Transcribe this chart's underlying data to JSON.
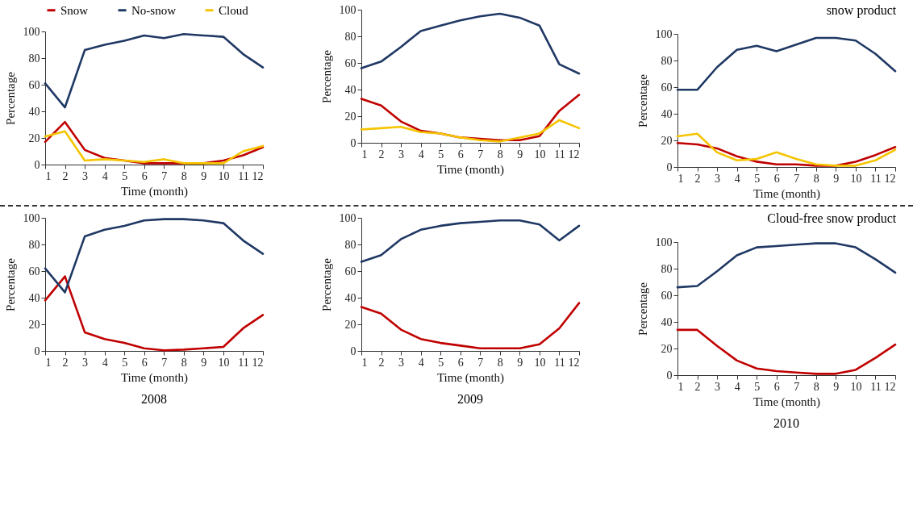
{
  "chart_data": [
    {
      "type": "line",
      "xlabel": "Time (month)",
      "ylabel": "Percentage",
      "legend": "top left",
      "x": [
        1,
        2,
        3,
        4,
        5,
        6,
        7,
        8,
        9,
        10,
        11,
        12
      ],
      "xlim": [
        1,
        12
      ],
      "xticks": [
        1,
        2,
        3,
        4,
        5,
        6,
        7,
        8,
        9,
        10,
        11,
        12
      ],
      "ylim": [
        0,
        100
      ],
      "yticks": [
        0,
        20,
        40,
        60,
        80,
        100
      ],
      "series": [
        {
          "name": "Snow",
          "color": "#c00000",
          "values": [
            17,
            32,
            11,
            5,
            3,
            1,
            1,
            1,
            1,
            3,
            7,
            13
          ]
        },
        {
          "name": "No-snow",
          "color": "#1f3864",
          "values": [
            61,
            43,
            86,
            90,
            93,
            97,
            95,
            98,
            97,
            96,
            83,
            73
          ]
        },
        {
          "name": "Cloud",
          "color": "#f5c400",
          "values": [
            21,
            25,
            3,
            4,
            3,
            2,
            4,
            1,
            1,
            1,
            10,
            14
          ]
        }
      ]
    },
    {
      "type": "line",
      "xlabel": "Time (month)",
      "ylabel": "Percentage",
      "x": [
        1,
        2,
        3,
        4,
        5,
        6,
        7,
        8,
        9,
        10,
        11,
        12
      ],
      "xlim": [
        1,
        12
      ],
      "xticks": [
        1,
        2,
        3,
        4,
        5,
        6,
        7,
        8,
        9,
        10,
        11,
        12
      ],
      "ylim": [
        0,
        100
      ],
      "yticks": [
        0,
        20,
        40,
        60,
        80,
        100
      ],
      "series": [
        {
          "color": "#c00000",
          "values": [
            33,
            28,
            16,
            9,
            7,
            4,
            3,
            2,
            2,
            5,
            24,
            36
          ]
        },
        {
          "color": "#1f3864",
          "values": [
            56,
            61,
            72,
            84,
            88,
            92,
            95,
            97,
            94,
            88,
            59,
            52
          ]
        },
        {
          "color": "#f5c400",
          "values": [
            10,
            11,
            12,
            8,
            7,
            4,
            2,
            1,
            4,
            7,
            17,
            11
          ]
        }
      ]
    },
    {
      "type": "line",
      "title": "snow product",
      "xlabel": "Time (month)",
      "ylabel": "Percentage",
      "x": [
        1,
        2,
        3,
        4,
        5,
        6,
        7,
        8,
        9,
        10,
        11,
        12
      ],
      "xlim": [
        1,
        12
      ],
      "xticks": [
        1,
        2,
        3,
        4,
        5,
        6,
        7,
        8,
        9,
        10,
        11,
        12
      ],
      "ylim": [
        0,
        100
      ],
      "yticks": [
        0,
        20,
        40,
        60,
        80,
        100
      ],
      "series": [
        {
          "color": "#c00000",
          "values": [
            18,
            17,
            14,
            8,
            4,
            2,
            2,
            1,
            1,
            4,
            9,
            15
          ]
        },
        {
          "color": "#1f3864",
          "values": [
            58,
            58,
            75,
            88,
            91,
            87,
            92,
            97,
            97,
            95,
            85,
            72
          ]
        },
        {
          "color": "#f5c400",
          "values": [
            23,
            25,
            11,
            5,
            6,
            11,
            6,
            2,
            1,
            1,
            5,
            13
          ]
        }
      ]
    },
    {
      "type": "line",
      "xlabel": "Time (month)",
      "ylabel": "Percentage",
      "annotations": [
        "2008"
      ],
      "x": [
        1,
        2,
        3,
        4,
        5,
        6,
        7,
        8,
        9,
        10,
        11,
        12
      ],
      "xlim": [
        1,
        12
      ],
      "xticks": [
        1,
        2,
        3,
        4,
        5,
        6,
        7,
        8,
        9,
        10,
        11,
        12
      ],
      "ylim": [
        0,
        100
      ],
      "yticks": [
        0,
        20,
        40,
        60,
        80,
        100
      ],
      "series": [
        {
          "color": "#c00000",
          "values": [
            38,
            56,
            14,
            9,
            6,
            2,
            0.5,
            1,
            2,
            3,
            17,
            27
          ]
        },
        {
          "color": "#1f3864",
          "values": [
            62,
            44,
            86,
            91,
            94,
            98,
            99,
            99,
            98,
            96,
            83,
            73
          ]
        }
      ]
    },
    {
      "type": "line",
      "xlabel": "Time (month)",
      "ylabel": "Percentage",
      "annotations": [
        "2009"
      ],
      "x": [
        1,
        2,
        3,
        4,
        5,
        6,
        7,
        8,
        9,
        10,
        11,
        12
      ],
      "xlim": [
        1,
        12
      ],
      "xticks": [
        1,
        2,
        3,
        4,
        5,
        6,
        7,
        8,
        9,
        10,
        11,
        12
      ],
      "ylim": [
        0,
        100
      ],
      "yticks": [
        0,
        20,
        40,
        60,
        80,
        100
      ],
      "series": [
        {
          "color": "#c00000",
          "values": [
            33,
            28,
            16,
            9,
            6,
            4,
            2,
            2,
            2,
            5,
            17,
            36
          ]
        },
        {
          "color": "#1f3864",
          "values": [
            67,
            72,
            84,
            91,
            94,
            96,
            97,
            98,
            98,
            95,
            83,
            94
          ]
        }
      ]
    },
    {
      "type": "line",
      "title": "Cloud-free snow product",
      "xlabel": "Time (month)",
      "ylabel": "Percentage",
      "annotations": [
        "2010"
      ],
      "x": [
        1,
        2,
        3,
        4,
        5,
        6,
        7,
        8,
        9,
        10,
        11,
        12
      ],
      "xlim": [
        1,
        12
      ],
      "xticks": [
        1,
        2,
        3,
        4,
        5,
        6,
        7,
        8,
        9,
        10,
        11,
        12
      ],
      "ylim": [
        0,
        100
      ],
      "yticks": [
        0,
        20,
        40,
        60,
        80,
        100
      ],
      "series": [
        {
          "color": "#c00000",
          "values": [
            34,
            34,
            22,
            11,
            5,
            3,
            2,
            1,
            1,
            4,
            13,
            23
          ]
        },
        {
          "color": "#1f3864",
          "values": [
            66,
            67,
            78,
            90,
            96,
            97,
            98,
            99,
            99,
            96,
            87,
            77
          ]
        }
      ]
    }
  ]
}
